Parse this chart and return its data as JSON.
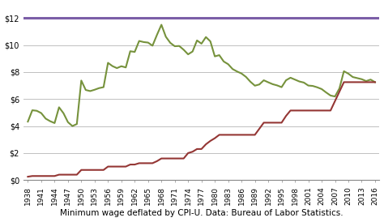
{
  "xlabel_caption": "Minimum wage deflated by CPI-U. Data: Bureau of Labor Statistics.",
  "ylim": [
    0,
    13
  ],
  "yticks": [
    0,
    2,
    4,
    6,
    8,
    10,
    12
  ],
  "ytick_labels": [
    "$0",
    "$2",
    "$4",
    "$6",
    "$8",
    "$10",
    "$12"
  ],
  "horizontal_line_y": 12,
  "horizontal_line_color": "#7B5EA7",
  "nominal_color": "#943634",
  "real_color": "#76923C",
  "plot_bg_color": "#FFFFFF",
  "fig_bg_color": "#FFFFFF",
  "grid_color": "#C0C0C0",
  "caption_fontsize": 7.5,
  "nominal_data": {
    "years": [
      1938,
      1939,
      1940,
      1941,
      1942,
      1943,
      1944,
      1945,
      1946,
      1947,
      1948,
      1949,
      1950,
      1951,
      1952,
      1953,
      1954,
      1955,
      1956,
      1957,
      1958,
      1959,
      1960,
      1961,
      1962,
      1963,
      1964,
      1965,
      1966,
      1967,
      1968,
      1969,
      1970,
      1971,
      1972,
      1973,
      1974,
      1975,
      1976,
      1977,
      1978,
      1979,
      1980,
      1981,
      1982,
      1983,
      1984,
      1985,
      1986,
      1987,
      1988,
      1989,
      1990,
      1991,
      1992,
      1993,
      1994,
      1995,
      1996,
      1997,
      1998,
      1999,
      2000,
      2001,
      2002,
      2003,
      2004,
      2005,
      2006,
      2007,
      2008,
      2009,
      2010,
      2011,
      2012,
      2013,
      2014,
      2015,
      2016
    ],
    "values": [
      0.25,
      0.3,
      0.3,
      0.3,
      0.3,
      0.3,
      0.3,
      0.4,
      0.4,
      0.4,
      0.4,
      0.4,
      0.75,
      0.75,
      0.75,
      0.75,
      0.75,
      0.75,
      1.0,
      1.0,
      1.0,
      1.0,
      1.0,
      1.15,
      1.15,
      1.25,
      1.25,
      1.25,
      1.25,
      1.4,
      1.6,
      1.6,
      1.6,
      1.6,
      1.6,
      1.6,
      2.0,
      2.1,
      2.3,
      2.3,
      2.65,
      2.9,
      3.1,
      3.35,
      3.35,
      3.35,
      3.35,
      3.35,
      3.35,
      3.35,
      3.35,
      3.35,
      3.8,
      4.25,
      4.25,
      4.25,
      4.25,
      4.25,
      4.75,
      5.15,
      5.15,
      5.15,
      5.15,
      5.15,
      5.15,
      5.15,
      5.15,
      5.15,
      5.15,
      5.85,
      6.55,
      7.25,
      7.25,
      7.25,
      7.25,
      7.25,
      7.25,
      7.25,
      7.25
    ]
  },
  "real_data": {
    "years": [
      1938,
      1939,
      1940,
      1941,
      1942,
      1943,
      1944,
      1945,
      1946,
      1947,
      1948,
      1949,
      1950,
      1951,
      1952,
      1953,
      1954,
      1955,
      1956,
      1957,
      1958,
      1959,
      1960,
      1961,
      1962,
      1963,
      1964,
      1965,
      1966,
      1967,
      1968,
      1969,
      1970,
      1971,
      1972,
      1973,
      1974,
      1975,
      1976,
      1977,
      1978,
      1979,
      1980,
      1981,
      1982,
      1983,
      1984,
      1985,
      1986,
      1987,
      1988,
      1989,
      1990,
      1991,
      1992,
      1993,
      1994,
      1995,
      1996,
      1997,
      1998,
      1999,
      2000,
      2001,
      2002,
      2003,
      2004,
      2005,
      2006,
      2007,
      2008,
      2009,
      2010,
      2011,
      2012,
      2013,
      2014,
      2015,
      2016
    ],
    "values": [
      4.33,
      5.17,
      5.13,
      4.96,
      4.55,
      4.36,
      4.22,
      5.39,
      4.95,
      4.29,
      4.0,
      4.15,
      7.37,
      6.67,
      6.59,
      6.69,
      6.81,
      6.88,
      8.68,
      8.44,
      8.29,
      8.43,
      8.34,
      9.54,
      9.49,
      10.3,
      10.22,
      10.18,
      9.95,
      10.75,
      11.5,
      10.61,
      10.16,
      9.91,
      9.93,
      9.65,
      9.31,
      9.52,
      10.34,
      10.1,
      10.59,
      10.27,
      9.16,
      9.25,
      8.78,
      8.58,
      8.22,
      8.04,
      7.89,
      7.64,
      7.28,
      6.99,
      7.08,
      7.39,
      7.24,
      7.1,
      7.01,
      6.88,
      7.39,
      7.58,
      7.44,
      7.3,
      7.22,
      7.0,
      6.97,
      6.87,
      6.74,
      6.49,
      6.26,
      6.19,
      6.79,
      8.06,
      7.88,
      7.63,
      7.55,
      7.47,
      7.33,
      7.44,
      7.25
    ]
  }
}
